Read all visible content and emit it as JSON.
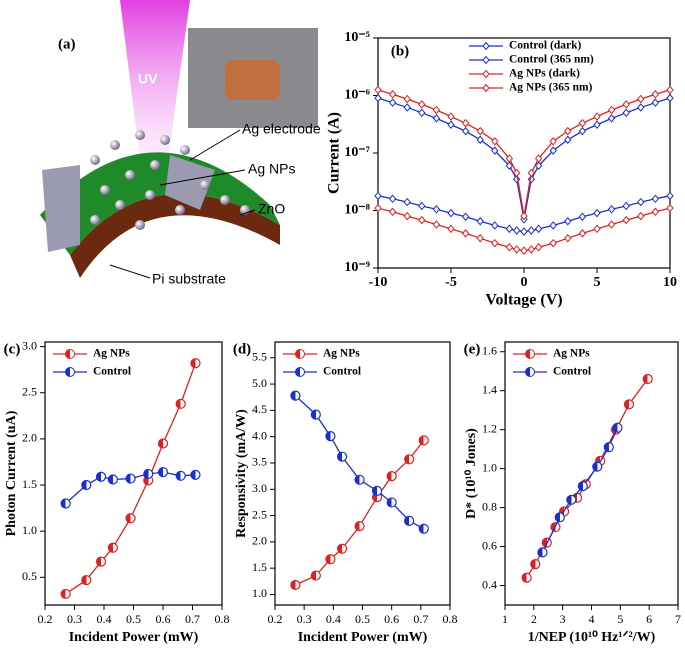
{
  "illustration": {
    "label": "(a)",
    "beam": "UV",
    "labels": [
      "Ag electrode",
      "Ag NPs",
      "ZnO",
      "Pi substrate"
    ]
  },
  "chart_data": [
    {
      "type": "line",
      "label": "(b)",
      "xlabel": "Voltage (V)",
      "ylabel": "Current (A)",
      "log_y": true,
      "marker": "diamond",
      "legend": "upper center",
      "xlim": [
        -10,
        10
      ],
      "xticks": [
        -10,
        -5,
        0,
        5,
        10
      ],
      "ylim": [
        1e-09,
        1e-05
      ],
      "yticks": [
        {
          "value": 1e-09,
          "label": "10⁻⁹"
        },
        {
          "value": 1e-08,
          "label": "10⁻⁸"
        },
        {
          "value": 1e-07,
          "label": "10⁻⁷"
        },
        {
          "value": 1e-06,
          "label": "10⁻⁶"
        },
        {
          "value": 1e-05,
          "label": "10⁻⁵"
        }
      ],
      "x": [
        -10,
        -9,
        -8,
        -7,
        -6,
        -5,
        -4,
        -3,
        -2,
        -1,
        -0.5,
        0,
        0.5,
        1,
        2,
        3,
        4,
        5,
        6,
        7,
        8,
        9,
        10
      ],
      "series": [
        {
          "name": "Control (dark)",
          "color": "#1a2fd0",
          "values": [
            1.8e-08,
            1.6e-08,
            1.4e-08,
            1.2e-08,
            1.05e-08,
            9e-09,
            7.8e-09,
            6.5e-09,
            5.5e-09,
            4.8e-09,
            4.5e-09,
            4.3e-09,
            4.5e-09,
            4.8e-09,
            5.5e-09,
            6.5e-09,
            7.8e-09,
            9e-09,
            1.05e-08,
            1.2e-08,
            1.4e-08,
            1.6e-08,
            1.8e-08
          ]
        },
        {
          "name": "Control (365 nm)",
          "color": "#1a2fd0",
          "values": [
            9e-07,
            7.5e-07,
            6.2e-07,
            5e-07,
            4e-07,
            3.1e-07,
            2.4e-07,
            1.7e-07,
            1.1e-07,
            6e-08,
            3.5e-08,
            7e-09,
            3.5e-08,
            6e-08,
            1.1e-07,
            1.7e-07,
            2.4e-07,
            3.1e-07,
            4e-07,
            5e-07,
            6.2e-07,
            7.5e-07,
            9e-07
          ]
        },
        {
          "name": "Ag NPs (dark)",
          "color": "#e0201e",
          "values": [
            1.1e-08,
            9.5e-09,
            8e-09,
            6.8e-09,
            5.7e-09,
            4.8e-09,
            4e-09,
            3.3e-09,
            2.7e-09,
            2.3e-09,
            2.1e-09,
            2e-09,
            2.1e-09,
            2.3e-09,
            2.7e-09,
            3.3e-09,
            4e-09,
            4.8e-09,
            5.7e-09,
            6.8e-09,
            8e-09,
            9.5e-09,
            1.1e-08
          ]
        },
        {
          "name": "Ag NPs (365 nm)",
          "color": "#e0201e",
          "values": [
            1.25e-06,
            1.05e-06,
            8.7e-07,
            7e-07,
            5.6e-07,
            4.3e-07,
            3.3e-07,
            2.4e-07,
            1.6e-07,
            8e-08,
            4.5e-08,
            8e-09,
            4.5e-08,
            8e-08,
            1.6e-07,
            2.4e-07,
            3.3e-07,
            4.3e-07,
            5.6e-07,
            7e-07,
            8.7e-07,
            1.05e-06,
            1.25e-06
          ]
        }
      ]
    },
    {
      "type": "line",
      "label": "(c)",
      "xlabel": "Incident Power (mW)",
      "ylabel": "Photon Current (uA)",
      "marker": "half",
      "legend": "upper left",
      "xlim": [
        0.2,
        0.8
      ],
      "xticks": [
        0.2,
        0.3,
        0.4,
        0.5,
        0.6,
        0.7,
        0.8
      ],
      "ylim": [
        0.2,
        3.05
      ],
      "yticks": [
        0.5,
        {
          "value": 1,
          "label": "1.0"
        },
        1.5,
        {
          "value": 2,
          "label": "2.0"
        },
        2.5,
        {
          "value": 3,
          "label": "3.0"
        }
      ],
      "x": [
        0.27,
        0.34,
        0.39,
        0.43,
        0.49,
        0.55,
        0.6,
        0.66,
        0.71
      ],
      "series": [
        {
          "name": "Ag NPs",
          "color": "#e0201e",
          "values": [
            0.32,
            0.47,
            0.67,
            0.82,
            1.14,
            1.55,
            1.95,
            2.38,
            2.82
          ]
        },
        {
          "name": "Control",
          "color": "#1a2fd0",
          "values": [
            1.3,
            1.5,
            1.59,
            1.56,
            1.57,
            1.62,
            1.64,
            1.6,
            1.61
          ]
        }
      ]
    },
    {
      "type": "line",
      "label": "(d)",
      "xlabel": "Incident Power (mW)",
      "ylabel": "Responsivity (mA/W)",
      "marker": "half",
      "legend": "upper left",
      "xlim": [
        0.2,
        0.8
      ],
      "xticks": [
        0.2,
        0.3,
        0.4,
        0.5,
        0.6,
        0.7,
        0.8
      ],
      "ylim": [
        0.8,
        5.8
      ],
      "yticks": [
        {
          "value": 1,
          "label": "1.0"
        },
        1.5,
        {
          "value": 2,
          "label": "2.0"
        },
        2.5,
        {
          "value": 3,
          "label": "3.0"
        },
        3.5,
        {
          "value": 4,
          "label": "4.0"
        },
        4.5,
        {
          "value": 5,
          "label": "5.0"
        },
        5.5
      ],
      "x": [
        0.27,
        0.34,
        0.39,
        0.43,
        0.49,
        0.55,
        0.6,
        0.66,
        0.71
      ],
      "series": [
        {
          "name": "Ag NPs",
          "color": "#e0201e",
          "values": [
            1.18,
            1.36,
            1.67,
            1.87,
            2.3,
            2.85,
            3.25,
            3.57,
            3.93
          ]
        },
        {
          "name": "Control",
          "color": "#1a2fd0",
          "values": [
            4.78,
            4.42,
            4.01,
            3.62,
            3.18,
            2.97,
            2.75,
            2.4,
            2.25
          ]
        }
      ]
    },
    {
      "type": "line",
      "label": "(e)",
      "xlabel": "1/NEP  (10¹⁰ Hz¹ᐟ²/W)",
      "ylabel": "D* (10¹⁰ Jones)",
      "marker": "half",
      "legend": "upper left",
      "xlim": [
        1,
        7
      ],
      "xticks": [
        1,
        2,
        3,
        4,
        5,
        6,
        7
      ],
      "ylim": [
        0.3,
        1.65
      ],
      "yticks": [
        0.4,
        0.6,
        0.8,
        {
          "value": 1,
          "label": "1.0"
        },
        1.2,
        1.4,
        1.6
      ],
      "series": [
        {
          "name": "Ag NPs",
          "color": "#e0201e",
          "x": [
            1.75,
            2.05,
            2.45,
            2.75,
            3.05,
            3.5,
            3.8,
            4.3,
            4.85,
            5.3,
            5.95
          ],
          "values": [
            0.44,
            0.51,
            0.62,
            0.7,
            0.78,
            0.85,
            0.92,
            1.04,
            1.2,
            1.33,
            1.46
          ]
        },
        {
          "name": "Control",
          "color": "#1a2fd0",
          "x": [
            2.3,
            2.9,
            3.3,
            3.7,
            4.2,
            4.6,
            4.9
          ],
          "values": [
            0.57,
            0.75,
            0.84,
            0.91,
            1.01,
            1.11,
            1.21
          ]
        }
      ]
    }
  ]
}
